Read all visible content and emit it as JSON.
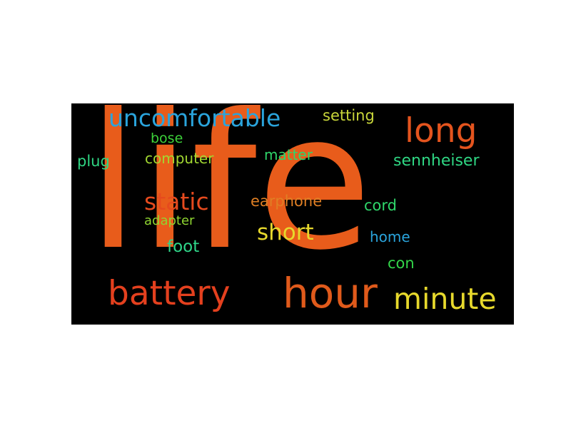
{
  "words": [
    {
      "text": "life",
      "color": "#e85c1b"
    },
    {
      "text": "uncomfortable",
      "color": "#2aa4dc"
    },
    {
      "text": "long",
      "color": "#e4541e"
    },
    {
      "text": "setting",
      "color": "#c9d63a"
    },
    {
      "text": "bose",
      "color": "#3dd23a"
    },
    {
      "text": "computer",
      "color": "#a2d831"
    },
    {
      "text": "matter",
      "color": "#2fd66a"
    },
    {
      "text": "sennheiser",
      "color": "#2fd683"
    },
    {
      "text": "plug",
      "color": "#2fd683"
    },
    {
      "text": "static",
      "color": "#e64a1e"
    },
    {
      "text": "earphone",
      "color": "#e07f24"
    },
    {
      "text": "cord",
      "color": "#2fd66a"
    },
    {
      "text": "adapter",
      "color": "#8fd631"
    },
    {
      "text": "short",
      "color": "#e7d92c"
    },
    {
      "text": "home",
      "color": "#2aa4dc"
    },
    {
      "text": "foot",
      "color": "#2fd68a"
    },
    {
      "text": "con",
      "color": "#33d64a"
    },
    {
      "text": "battery",
      "color": "#e4401e"
    },
    {
      "text": "hour",
      "color": "#e05a1b"
    },
    {
      "text": "minute",
      "color": "#e7d92c"
    }
  ]
}
